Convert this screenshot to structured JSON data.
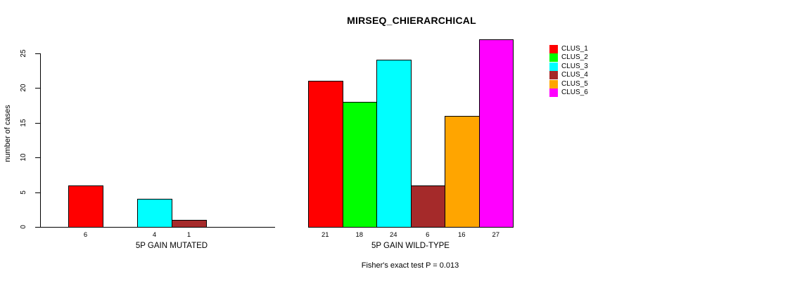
{
  "title": "MIRSEQ_CHIERARCHICAL",
  "footer": "Fisher's exact test P = 0.013",
  "y_axis": {
    "label": "number of cases"
  },
  "legend": {
    "items": [
      {
        "label": "CLUS_1",
        "color": "#FF0000"
      },
      {
        "label": "CLUS_2",
        "color": "#00FF00"
      },
      {
        "label": "CLUS_3",
        "color": "#00FFFF"
      },
      {
        "label": "CLUS_4",
        "color": "#A52A2A"
      },
      {
        "label": "CLUS_5",
        "color": "#FFA500"
      },
      {
        "label": "CLUS_6",
        "color": "#FF00FF"
      }
    ]
  },
  "chart_data": {
    "type": "bar",
    "title": "MIRSEQ_CHIERARCHICAL",
    "ylabel": "number of cases",
    "xlabel": "",
    "ylim": [
      0,
      27
    ],
    "yticks": [
      0,
      5,
      10,
      15,
      20,
      25
    ],
    "grid": false,
    "legend_position": "right-outside",
    "series_labels": [
      "CLUS_1",
      "CLUS_2",
      "CLUS_3",
      "CLUS_4",
      "CLUS_5",
      "CLUS_6"
    ],
    "series_colors": [
      "#FF0000",
      "#00FF00",
      "#00FFFF",
      "#A52A2A",
      "#FFA500",
      "#FF00FF"
    ],
    "groups": [
      {
        "label": "5P GAIN MUTATED",
        "values": [
          6,
          0,
          4,
          1,
          0,
          0
        ]
      },
      {
        "label": "5P GAIN WILD-TYPE",
        "values": [
          21,
          18,
          24,
          6,
          16,
          27
        ]
      }
    ],
    "bar_value_labels_shown_only_for_nonzero": true,
    "annotation": "Fisher's exact test P = 0.013"
  }
}
